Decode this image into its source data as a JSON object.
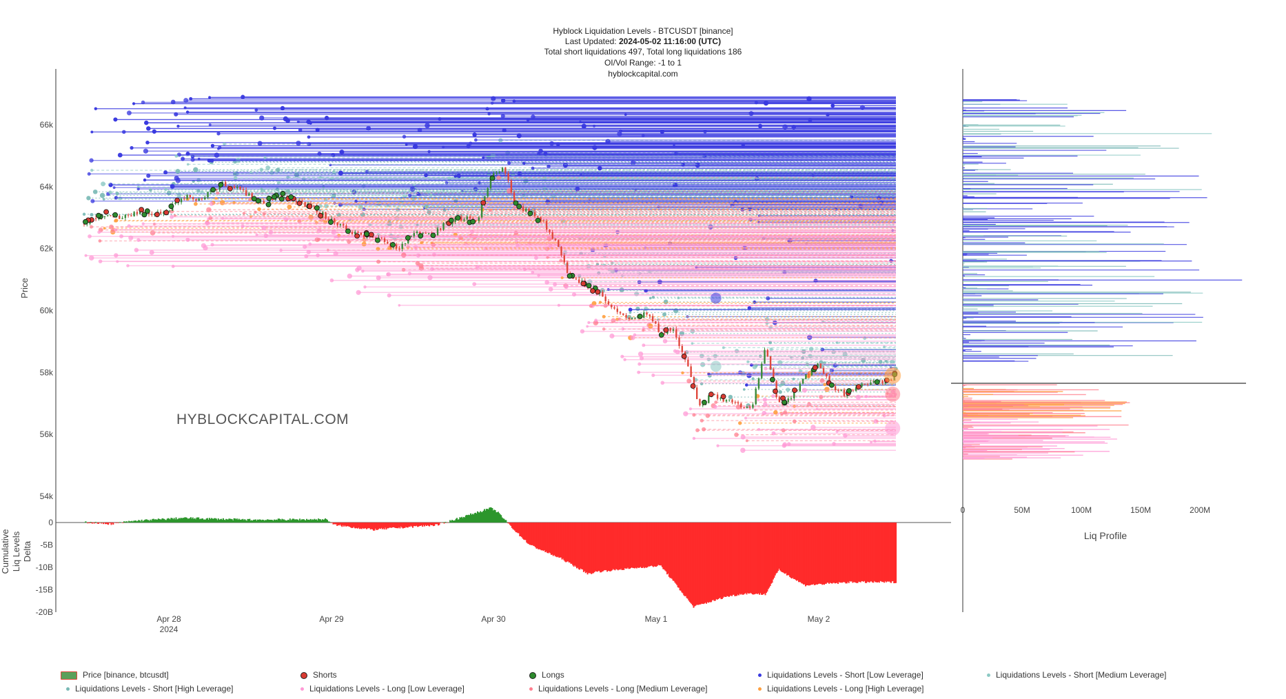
{
  "header": {
    "title": "Hyblock Liquidation Levels - BTCUSDT [binance]",
    "updated_label": "Last Updated: ",
    "updated_value": "2024-05-02 11:16:00 (UTC)",
    "totals": "Total short liquidations 497, Total long liquidations 186",
    "oivol": "OI/Vol Range: -1 to 1",
    "site": "hyblockcapital.com"
  },
  "watermark": "HYBLOCKCAPITAL.COM",
  "colors": {
    "short_low": "#3a3ae0",
    "short_medium": "#8cc9c4",
    "short_high": "#79b9b5",
    "long_low": "#ff9ad6",
    "long_medium": "#ff7f8f",
    "long_high": "#ffa040",
    "candle_up": "#3a8a3a",
    "candle_down": "#e0483c",
    "delta_pos": "#2c962c",
    "delta_neg": "#ff2b2b",
    "axis": "#333333"
  },
  "chart_data": [
    {
      "type": "line",
      "title": "",
      "ylabel": "Price",
      "ylim": [
        53500,
        67500
      ],
      "y_ticks": [
        "54k",
        "56k",
        "58k",
        "60k",
        "62k",
        "64k",
        "66k"
      ],
      "x_ticks": [
        "Apr 28",
        "Apr 29",
        "Apr 30",
        "May 1",
        "May 2"
      ],
      "x_tick_sub": "2024",
      "x": [
        0,
        3,
        6,
        8,
        12,
        15,
        18,
        21,
        24,
        26,
        28,
        30,
        32,
        35,
        40,
        45,
        48,
        50,
        53,
        55,
        58,
        60,
        62,
        64,
        66,
        68,
        70,
        72,
        74,
        76,
        78,
        80,
        82,
        84,
        86,
        88,
        90,
        92,
        94,
        96,
        98,
        100,
        102,
        104,
        106,
        108,
        110,
        112,
        114,
        116,
        118,
        120,
        122,
        124
      ],
      "series": [
        {
          "values": [
            62800,
            63100,
            63000,
            63200,
            63100,
            63700,
            63600,
            64100,
            63900,
            63600,
            63500,
            63700,
            63600,
            63300,
            62600,
            62300,
            62000,
            62500,
            62400,
            62800,
            63000,
            62800,
            64300,
            64600,
            63400,
            63200,
            62900,
            62200,
            61200,
            60900,
            60700,
            60300,
            59800,
            59700,
            59900,
            59300,
            59400,
            58300,
            56900,
            57300,
            57100,
            57000,
            56800,
            58800,
            57000,
            57200,
            57800,
            58300,
            57600,
            57300,
            57500,
            57600,
            57700,
            57900
          ]
        }
      ]
    },
    {
      "type": "area",
      "ylabel": "Cumulative Liq Levels Delta",
      "ylim": [
        -20,
        0
      ],
      "y_ticks": [
        "0",
        "-5B",
        "-10B",
        "-15B",
        "-20B"
      ],
      "x": [
        0,
        4,
        8,
        15,
        25,
        37,
        38,
        44,
        54,
        62,
        63,
        66,
        68,
        73,
        77,
        78,
        85,
        88,
        93,
        97,
        98,
        99,
        101,
        104,
        106,
        110,
        117,
        124
      ],
      "series": [
        {
          "name": "",
          "values": [
            0.1,
            -0.3,
            0.4,
            1.0,
            0.6,
            0.7,
            -0.5,
            -1.6,
            -0.5,
            3.2,
            2.4,
            -2.2,
            -5.0,
            -8.2,
            -11.5,
            -11.0,
            -10.0,
            -9.6,
            -18.8,
            -17.0,
            -16.5,
            -16.3,
            -15.8,
            -16.0,
            -10.5,
            -14.0,
            -13.3,
            -13.3
          ]
        }
      ]
    },
    {
      "type": "bar",
      "title": "Liq Profile",
      "x_ticks": [
        "0",
        "50M",
        "100M",
        "150M",
        "200M"
      ],
      "xlim": [
        0,
        240
      ]
    }
  ],
  "legend": [
    {
      "label": "Price [binance, btcusdt]",
      "kind": "candle"
    },
    {
      "label": "Shorts",
      "kind": "dot-red"
    },
    {
      "label": "Longs",
      "kind": "dot-green"
    },
    {
      "label": "Liquidations Levels - Short [Low Leverage]",
      "kind": "short_low"
    },
    {
      "label": "Liquidations Levels - Short [Medium Leverage]",
      "kind": "short_medium"
    },
    {
      "label": "Liquidations Levels - Short [High Leverage]",
      "kind": "short_high"
    },
    {
      "label": "Liquidations Levels - Long [Low Leverage]",
      "kind": "long_low"
    },
    {
      "label": "Liquidations Levels - Long [Medium Leverage]",
      "kind": "long_medium"
    },
    {
      "label": "Liquidations Levels - Long [High Leverage]",
      "kind": "long_high"
    }
  ]
}
